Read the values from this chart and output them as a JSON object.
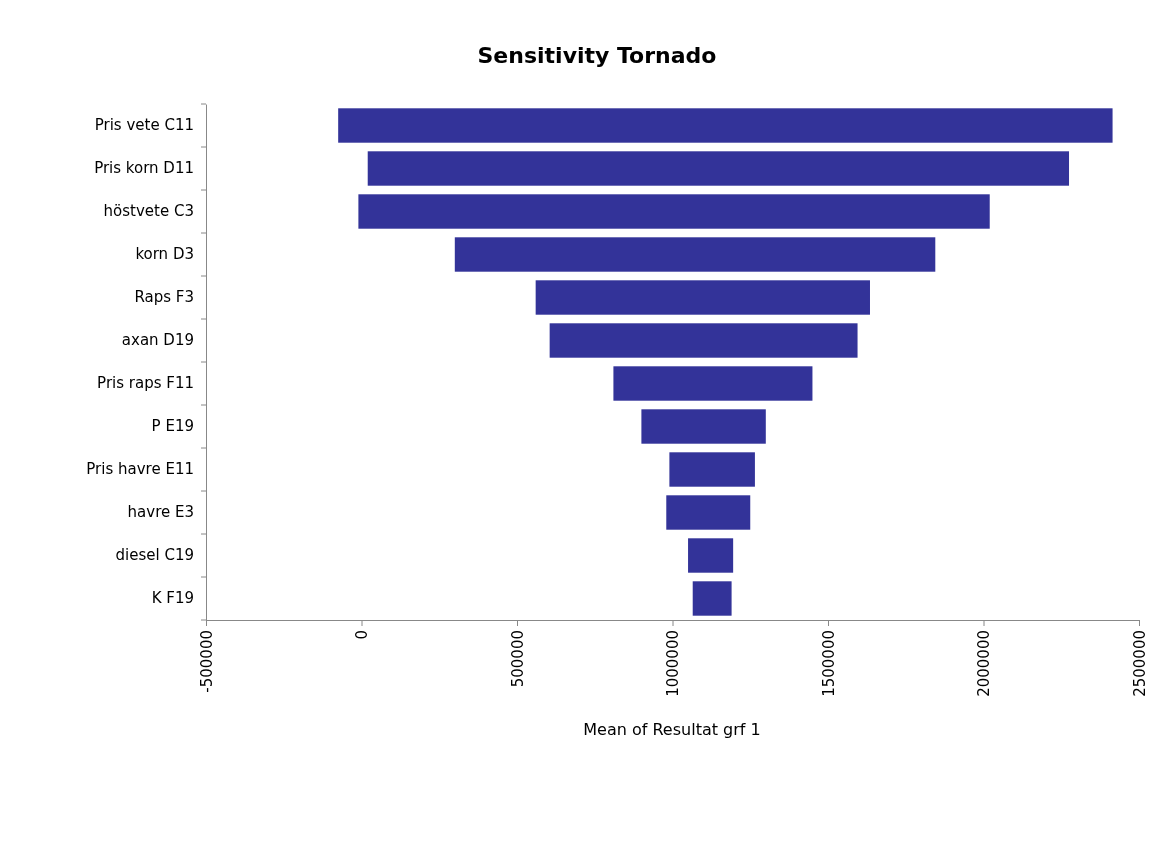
{
  "chart_data": {
    "type": "bar",
    "orientation": "horizontal",
    "title": "Sensitivity Tornado",
    "xlabel": "Mean of Resultat grf 1",
    "categories": [
      "Pris vete C11",
      "Pris korn D11",
      "höstvete C3",
      "korn D3",
      "Raps F3",
      "axan D19",
      "Pris raps F11",
      "P E19",
      "Pris havre E11",
      "havre E3",
      "diesel C19",
      "K F19"
    ],
    "base": [
      -75000,
      20000,
      -10000,
      300000,
      560000,
      605000,
      810000,
      900000,
      990000,
      980000,
      1050000,
      1065000
    ],
    "values": [
      2490000,
      2255000,
      2030000,
      1545000,
      1075000,
      990000,
      640000,
      400000,
      275000,
      270000,
      145000,
      125000
    ],
    "color": "#333399",
    "xlim": [
      -500000,
      2500000
    ],
    "xticks": [
      -500000,
      0,
      500000,
      1000000,
      1500000,
      2000000,
      2500000
    ],
    "grid": false
  }
}
